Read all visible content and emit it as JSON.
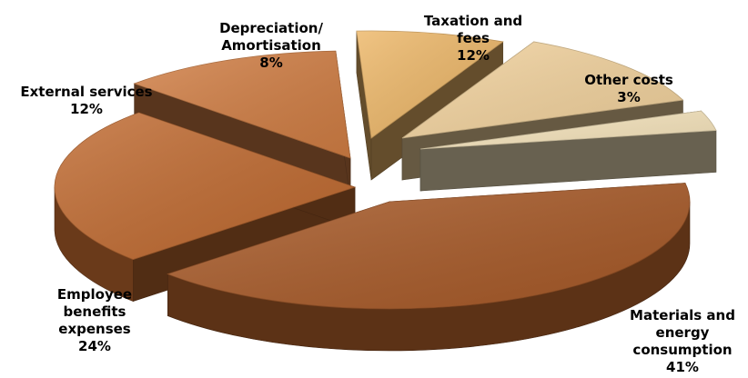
{
  "chart_data": {
    "type": "pie",
    "style": "3d-exploded",
    "title": "",
    "slices": [
      {
        "label": "Materials and energy consumption",
        "label_lines": [
          "Materials and",
          "energy",
          "consumption"
        ],
        "value": 41,
        "value_label": "41%",
        "color": "#A85A28"
      },
      {
        "label": "Employee benefits expenses",
        "label_lines": [
          "Employee",
          "benefits",
          "expenses"
        ],
        "value": 24,
        "value_label": "24%",
        "color": "#C06A30"
      },
      {
        "label": "External services",
        "label_lines": [
          "External services"
        ],
        "value": 12,
        "value_label": "12%",
        "color": "#D17E44"
      },
      {
        "label": "Depreciation/ Amortisation",
        "label_lines": [
          "Depreciation/",
          "Amortisation"
        ],
        "value": 8,
        "value_label": "8%",
        "color": "#EDB768"
      },
      {
        "label": "Taxation and fees",
        "label_lines": [
          "Taxation and",
          "fees"
        ],
        "value": 12,
        "value_label": "12%",
        "color": "#F3D39E"
      },
      {
        "label": "Other costs",
        "label_lines": [
          "Other costs"
        ],
        "value": 3,
        "value_label": "3%",
        "color": "#F8E6BE"
      }
    ]
  }
}
